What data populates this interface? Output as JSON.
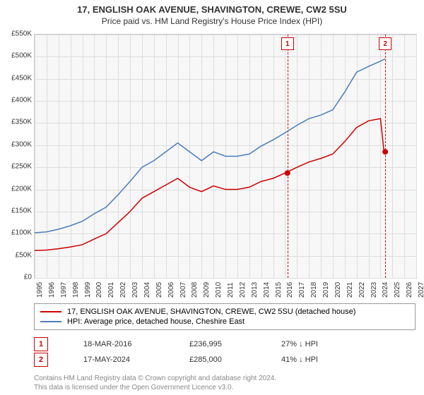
{
  "title": "17, ENGLISH OAK AVENUE, SHAVINGTON, CREWE, CW2 5SU",
  "subtitle": "Price paid vs. HM Land Registry's House Price Index (HPI)",
  "chart": {
    "type": "line",
    "background_color": "#f7f7f7",
    "grid_color": "#dddddd",
    "border_color": "#cccccc",
    "ylim": [
      0,
      550000
    ],
    "ytick_step": 50000,
    "yticks": [
      "£0",
      "£50K",
      "£100K",
      "£150K",
      "£200K",
      "£250K",
      "£300K",
      "£350K",
      "£400K",
      "£450K",
      "£500K",
      "£550K"
    ],
    "xlim": [
      1995,
      2027
    ],
    "xticks": [
      1995,
      1996,
      1997,
      1998,
      1999,
      2000,
      2001,
      2002,
      2003,
      2004,
      2005,
      2006,
      2007,
      2008,
      2009,
      2010,
      2011,
      2012,
      2013,
      2014,
      2015,
      2016,
      2017,
      2018,
      2019,
      2020,
      2021,
      2022,
      2023,
      2024,
      2025,
      2026,
      2027
    ],
    "series": [
      {
        "name": "property",
        "label": "17, ENGLISH OAK AVENUE, SHAVINGTON, CREWE, CW2 5SU (detached house)",
        "color": "#cc0000",
        "line_width": 1.5,
        "data": [
          [
            1995,
            62000
          ],
          [
            1996,
            63000
          ],
          [
            1997,
            66000
          ],
          [
            1998,
            70000
          ],
          [
            1999,
            75000
          ],
          [
            2000,
            88000
          ],
          [
            2001,
            100000
          ],
          [
            2002,
            125000
          ],
          [
            2003,
            150000
          ],
          [
            2004,
            180000
          ],
          [
            2005,
            195000
          ],
          [
            2006,
            210000
          ],
          [
            2007,
            225000
          ],
          [
            2008,
            205000
          ],
          [
            2009,
            195000
          ],
          [
            2010,
            208000
          ],
          [
            2011,
            200000
          ],
          [
            2012,
            200000
          ],
          [
            2013,
            205000
          ],
          [
            2014,
            218000
          ],
          [
            2015,
            225000
          ],
          [
            2016,
            236995
          ],
          [
            2017,
            250000
          ],
          [
            2018,
            262000
          ],
          [
            2019,
            270000
          ],
          [
            2020,
            280000
          ],
          [
            2021,
            308000
          ],
          [
            2022,
            340000
          ],
          [
            2023,
            355000
          ],
          [
            2024,
            360000
          ],
          [
            2024.3,
            285000
          ]
        ]
      },
      {
        "name": "hpi",
        "label": "HPI: Average price, detached house, Cheshire East",
        "color": "#4a7ebb",
        "line_width": 1.5,
        "data": [
          [
            1995,
            102000
          ],
          [
            1996,
            104000
          ],
          [
            1997,
            110000
          ],
          [
            1998,
            118000
          ],
          [
            1999,
            128000
          ],
          [
            2000,
            145000
          ],
          [
            2001,
            160000
          ],
          [
            2002,
            188000
          ],
          [
            2003,
            218000
          ],
          [
            2004,
            250000
          ],
          [
            2005,
            265000
          ],
          [
            2006,
            285000
          ],
          [
            2007,
            305000
          ],
          [
            2008,
            285000
          ],
          [
            2009,
            265000
          ],
          [
            2010,
            285000
          ],
          [
            2011,
            275000
          ],
          [
            2012,
            275000
          ],
          [
            2013,
            280000
          ],
          [
            2014,
            298000
          ],
          [
            2015,
            312000
          ],
          [
            2016,
            328000
          ],
          [
            2017,
            345000
          ],
          [
            2018,
            360000
          ],
          [
            2019,
            368000
          ],
          [
            2020,
            380000
          ],
          [
            2021,
            420000
          ],
          [
            2022,
            465000
          ],
          [
            2023,
            478000
          ],
          [
            2024,
            490000
          ],
          [
            2024.4,
            495000
          ]
        ]
      }
    ],
    "events": [
      {
        "id": "1",
        "x": 2016.2,
        "color": "#cc0000",
        "dot_y": 236995
      },
      {
        "id": "2",
        "x": 2024.4,
        "color": "#cc0000",
        "dot_y": 285000
      }
    ]
  },
  "legend": {
    "border_color": "#999999"
  },
  "sales": [
    {
      "id": "1",
      "color": "#cc0000",
      "date": "18-MAR-2016",
      "price": "£236,995",
      "delta": "27% ↓ HPI"
    },
    {
      "id": "2",
      "color": "#cc0000",
      "date": "17-MAY-2024",
      "price": "£285,000",
      "delta": "41% ↓ HPI"
    }
  ],
  "footer": {
    "line1": "Contains HM Land Registry data © Crown copyright and database right 2024.",
    "line2": "This data is licensed under the Open Government Licence v3.0."
  }
}
